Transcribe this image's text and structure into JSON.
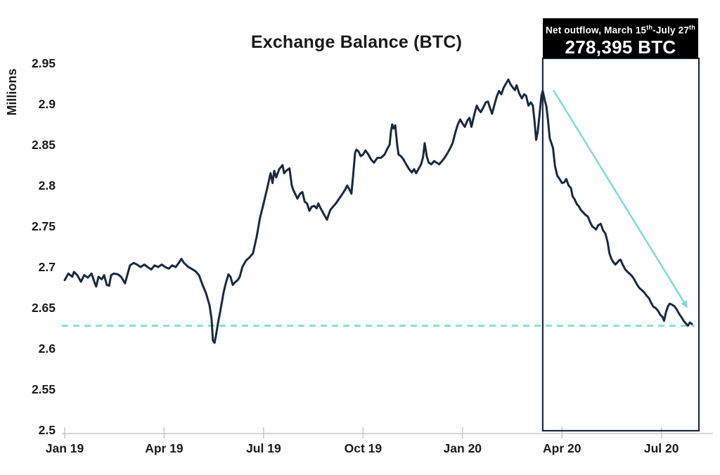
{
  "chart_data": {
    "type": "line",
    "title": "Exchange Balance (BTC)",
    "ylabel": "Millions",
    "xlabel": "",
    "ylim": [
      2.5,
      2.95
    ],
    "grid": false,
    "legend": "none",
    "y_ticks": [
      {
        "v": 2.95,
        "label": "2.95"
      },
      {
        "v": 2.9,
        "label": "2.9"
      },
      {
        "v": 2.85,
        "label": "2.85"
      },
      {
        "v": 2.8,
        "label": "2.8"
      },
      {
        "v": 2.75,
        "label": "2.75"
      },
      {
        "v": 2.7,
        "label": "2.7"
      },
      {
        "v": 2.65,
        "label": "2.65"
      },
      {
        "v": 2.6,
        "label": "2.6"
      },
      {
        "v": 2.55,
        "label": "2.55"
      },
      {
        "v": 2.5,
        "label": "2.5"
      }
    ],
    "x_ticks": [
      {
        "t": 0,
        "label": "Jan 19"
      },
      {
        "t": 3,
        "label": "Apr 19"
      },
      {
        "t": 6,
        "label": "Jul 19"
      },
      {
        "t": 9,
        "label": "Oct 19"
      },
      {
        "t": 12,
        "label": "Jan 20"
      },
      {
        "t": 15,
        "label": "Apr 20"
      },
      {
        "t": 18,
        "label": "Jul 20"
      }
    ],
    "series": [
      {
        "name": "Exchange Balance (BTC, millions)",
        "color": "#1b2940",
        "points": [
          [
            0.0,
            2.684
          ],
          [
            0.11,
            2.692
          ],
          [
            0.23,
            2.688
          ],
          [
            0.28,
            2.694
          ],
          [
            0.38,
            2.69
          ],
          [
            0.49,
            2.682
          ],
          [
            0.59,
            2.69
          ],
          [
            0.7,
            2.687
          ],
          [
            0.81,
            2.692
          ],
          [
            0.91,
            2.68
          ],
          [
            0.95,
            2.676
          ],
          [
            1.02,
            2.688
          ],
          [
            1.12,
            2.685
          ],
          [
            1.19,
            2.69
          ],
          [
            1.27,
            2.678
          ],
          [
            1.34,
            2.677
          ],
          [
            1.4,
            2.69
          ],
          [
            1.48,
            2.692
          ],
          [
            1.61,
            2.691
          ],
          [
            1.7,
            2.688
          ],
          [
            1.82,
            2.68
          ],
          [
            1.97,
            2.702
          ],
          [
            2.08,
            2.705
          ],
          [
            2.18,
            2.703
          ],
          [
            2.29,
            2.7
          ],
          [
            2.4,
            2.703
          ],
          [
            2.5,
            2.7
          ],
          [
            2.61,
            2.697
          ],
          [
            2.71,
            2.702
          ],
          [
            2.82,
            2.7
          ],
          [
            2.93,
            2.703
          ],
          [
            3.03,
            2.7
          ],
          [
            3.14,
            2.698
          ],
          [
            3.24,
            2.702
          ],
          [
            3.35,
            2.7
          ],
          [
            3.46,
            2.706
          ],
          [
            3.52,
            2.71
          ],
          [
            3.6,
            2.705
          ],
          [
            3.73,
            2.7
          ],
          [
            3.82,
            2.698
          ],
          [
            3.94,
            2.695
          ],
          [
            4.05,
            2.69
          ],
          [
            4.16,
            2.678
          ],
          [
            4.26,
            2.668
          ],
          [
            4.37,
            2.653
          ],
          [
            4.43,
            2.636
          ],
          [
            4.47,
            2.61
          ],
          [
            4.52,
            2.607
          ],
          [
            4.56,
            2.615
          ],
          [
            4.62,
            2.63
          ],
          [
            4.69,
            2.645
          ],
          [
            4.75,
            2.659
          ],
          [
            4.79,
            2.668
          ],
          [
            4.86,
            2.68
          ],
          [
            4.94,
            2.691
          ],
          [
            5.0,
            2.688
          ],
          [
            5.07,
            2.678
          ],
          [
            5.13,
            2.681
          ],
          [
            5.22,
            2.684
          ],
          [
            5.28,
            2.688
          ],
          [
            5.36,
            2.7
          ],
          [
            5.47,
            2.708
          ],
          [
            5.58,
            2.712
          ],
          [
            5.68,
            2.717
          ],
          [
            5.79,
            2.737
          ],
          [
            5.89,
            2.76
          ],
          [
            6.0,
            2.778
          ],
          [
            6.11,
            2.797
          ],
          [
            6.21,
            2.815
          ],
          [
            6.27,
            2.803
          ],
          [
            6.32,
            2.818
          ],
          [
            6.38,
            2.81
          ],
          [
            6.47,
            2.82
          ],
          [
            6.57,
            2.825
          ],
          [
            6.62,
            2.815
          ],
          [
            6.68,
            2.818
          ],
          [
            6.78,
            2.821
          ],
          [
            6.85,
            2.8
          ],
          [
            6.89,
            2.795
          ],
          [
            7.02,
            2.784
          ],
          [
            7.1,
            2.79
          ],
          [
            7.17,
            2.792
          ],
          [
            7.24,
            2.78
          ],
          [
            7.31,
            2.778
          ],
          [
            7.38,
            2.769
          ],
          [
            7.45,
            2.774
          ],
          [
            7.53,
            2.775
          ],
          [
            7.6,
            2.772
          ],
          [
            7.65,
            2.778
          ],
          [
            7.72,
            2.772
          ],
          [
            7.8,
            2.766
          ],
          [
            7.91,
            2.758
          ],
          [
            8.01,
            2.77
          ],
          [
            8.18,
            2.778
          ],
          [
            8.35,
            2.788
          ],
          [
            8.46,
            2.795
          ],
          [
            8.52,
            2.8
          ],
          [
            8.58,
            2.796
          ],
          [
            8.65,
            2.79
          ],
          [
            8.7,
            2.812
          ],
          [
            8.76,
            2.84
          ],
          [
            8.8,
            2.844
          ],
          [
            8.86,
            2.842
          ],
          [
            8.93,
            2.836
          ],
          [
            9.0,
            2.838
          ],
          [
            9.07,
            2.843
          ],
          [
            9.16,
            2.838
          ],
          [
            9.24,
            2.832
          ],
          [
            9.33,
            2.828
          ],
          [
            9.43,
            2.834
          ],
          [
            9.54,
            2.834
          ],
          [
            9.65,
            2.838
          ],
          [
            9.73,
            2.845
          ],
          [
            9.8,
            2.85
          ],
          [
            9.84,
            2.866
          ],
          [
            9.88,
            2.875
          ],
          [
            9.92,
            2.87
          ],
          [
            9.97,
            2.874
          ],
          [
            10.03,
            2.85
          ],
          [
            10.07,
            2.838
          ],
          [
            10.14,
            2.836
          ],
          [
            10.22,
            2.832
          ],
          [
            10.3,
            2.826
          ],
          [
            10.39,
            2.82
          ],
          [
            10.47,
            2.816
          ],
          [
            10.54,
            2.82
          ],
          [
            10.6,
            2.815
          ],
          [
            10.67,
            2.82
          ],
          [
            10.75,
            2.826
          ],
          [
            10.81,
            2.835
          ],
          [
            10.86,
            2.852
          ],
          [
            10.92,
            2.836
          ],
          [
            10.98,
            2.828
          ],
          [
            11.06,
            2.826
          ],
          [
            11.14,
            2.83
          ],
          [
            11.22,
            2.828
          ],
          [
            11.3,
            2.826
          ],
          [
            11.38,
            2.83
          ],
          [
            11.46,
            2.834
          ],
          [
            11.55,
            2.84
          ],
          [
            11.62,
            2.845
          ],
          [
            11.7,
            2.852
          ],
          [
            11.79,
            2.866
          ],
          [
            11.86,
            2.875
          ],
          [
            11.93,
            2.881
          ],
          [
            12.0,
            2.876
          ],
          [
            12.07,
            2.872
          ],
          [
            12.15,
            2.88
          ],
          [
            12.21,
            2.883
          ],
          [
            12.27,
            2.872
          ],
          [
            12.36,
            2.888
          ],
          [
            12.43,
            2.898
          ],
          [
            12.49,
            2.893
          ],
          [
            12.55,
            2.89
          ],
          [
            12.62,
            2.895
          ],
          [
            12.7,
            2.902
          ],
          [
            12.77,
            2.903
          ],
          [
            12.83,
            2.895
          ],
          [
            12.89,
            2.888
          ],
          [
            12.97,
            2.9
          ],
          [
            13.04,
            2.91
          ],
          [
            13.1,
            2.916
          ],
          [
            13.17,
            2.912
          ],
          [
            13.24,
            2.92
          ],
          [
            13.31,
            2.925
          ],
          [
            13.38,
            2.93
          ],
          [
            13.45,
            2.924
          ],
          [
            13.52,
            2.92
          ],
          [
            13.58,
            2.917
          ],
          [
            13.63,
            2.923
          ],
          [
            13.71,
            2.913
          ],
          [
            13.79,
            2.907
          ],
          [
            13.86,
            2.912
          ],
          [
            13.92,
            2.91
          ],
          [
            13.99,
            2.898
          ],
          [
            14.06,
            2.902
          ],
          [
            14.12,
            2.898
          ],
          [
            14.17,
            2.88
          ],
          [
            14.22,
            2.856
          ],
          [
            14.27,
            2.866
          ],
          [
            14.32,
            2.886
          ],
          [
            14.38,
            2.91
          ],
          [
            14.42,
            2.916
          ],
          [
            14.48,
            2.905
          ],
          [
            14.53,
            2.897
          ],
          [
            14.58,
            2.88
          ],
          [
            14.63,
            2.858
          ],
          [
            14.68,
            2.852
          ],
          [
            14.73,
            2.846
          ],
          [
            14.79,
            2.824
          ],
          [
            14.86,
            2.812
          ],
          [
            14.93,
            2.808
          ],
          [
            15.0,
            2.803
          ],
          [
            15.07,
            2.804
          ],
          [
            15.13,
            2.808
          ],
          [
            15.2,
            2.8
          ],
          [
            15.27,
            2.797
          ],
          [
            15.32,
            2.787
          ],
          [
            15.38,
            2.783
          ],
          [
            15.45,
            2.777
          ],
          [
            15.5,
            2.775
          ],
          [
            15.57,
            2.77
          ],
          [
            15.64,
            2.767
          ],
          [
            15.71,
            2.764
          ],
          [
            15.78,
            2.762
          ],
          [
            15.85,
            2.755
          ],
          [
            15.91,
            2.75
          ],
          [
            15.97,
            2.748
          ],
          [
            16.03,
            2.746
          ],
          [
            16.09,
            2.751
          ],
          [
            16.17,
            2.753
          ],
          [
            16.24,
            2.745
          ],
          [
            16.31,
            2.741
          ],
          [
            16.38,
            2.73
          ],
          [
            16.43,
            2.717
          ],
          [
            16.49,
            2.71
          ],
          [
            16.55,
            2.706
          ],
          [
            16.61,
            2.703
          ],
          [
            16.66,
            2.705
          ],
          [
            16.72,
            2.708
          ],
          [
            16.77,
            2.709
          ],
          [
            16.83,
            2.703
          ],
          [
            16.91,
            2.697
          ],
          [
            16.98,
            2.694
          ],
          [
            17.06,
            2.691
          ],
          [
            17.13,
            2.688
          ],
          [
            17.19,
            2.684
          ],
          [
            17.27,
            2.678
          ],
          [
            17.34,
            2.674
          ],
          [
            17.4,
            2.672
          ],
          [
            17.48,
            2.669
          ],
          [
            17.55,
            2.665
          ],
          [
            17.62,
            2.662
          ],
          [
            17.69,
            2.656
          ],
          [
            17.76,
            2.651
          ],
          [
            17.82,
            2.65
          ],
          [
            17.9,
            2.646
          ],
          [
            17.97,
            2.641
          ],
          [
            18.03,
            2.639
          ],
          [
            18.08,
            2.634
          ],
          [
            18.14,
            2.645
          ],
          [
            18.2,
            2.652
          ],
          [
            18.25,
            2.655
          ],
          [
            18.31,
            2.654
          ],
          [
            18.39,
            2.652
          ],
          [
            18.46,
            2.648
          ],
          [
            18.54,
            2.642
          ],
          [
            18.61,
            2.638
          ],
          [
            18.67,
            2.634
          ],
          [
            18.73,
            2.631
          ],
          [
            18.8,
            2.628
          ],
          [
            18.86,
            2.632
          ],
          [
            18.92,
            2.63
          ]
        ]
      }
    ],
    "baseline": {
      "value": 2.628,
      "style": "dashed",
      "color": "#7adbd2",
      "t_end": 19.0
    },
    "highlight_box": {
      "t_start": 14.42,
      "t_end": 19.13,
      "border_color": "#1b2940"
    },
    "arrow": {
      "from": [
        14.74,
        2.917
      ],
      "to": [
        18.77,
        2.651
      ],
      "color": "#7adbd2"
    },
    "callout": {
      "label_prefix": "Net outflow, March 15",
      "label_sup1": "th",
      "label_mid": "-July 27",
      "label_sup2": "th",
      "value": "278,395 BTC",
      "bg": "#000000",
      "text_color": "#ffffff"
    },
    "axis_color": "#c9c9c9",
    "text_color": "#1a1a1a"
  }
}
